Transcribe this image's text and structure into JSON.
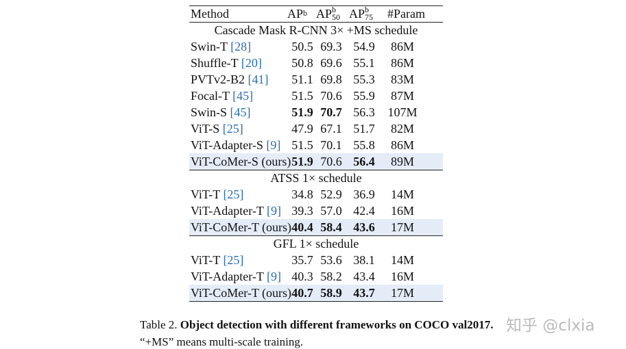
{
  "table": {
    "header": [
      {
        "text": "Method"
      },
      {
        "text": "AP",
        "sup": "b"
      },
      {
        "text": "AP",
        "sup": "b",
        "sub": "50"
      },
      {
        "text": "AP",
        "sup": "b",
        "sub": "75"
      },
      {
        "text": "#Param"
      }
    ],
    "sections": [
      {
        "title": "Cascade Mask R-CNN 3× +MS schedule",
        "rows": [
          {
            "method": "Swin-T",
            "cite": "[28]",
            "cells": [
              "50.5",
              "69.3",
              "54.9",
              "86M"
            ],
            "bold": [],
            "highlight": false
          },
          {
            "method": "Shuffle-T",
            "cite": "[20]",
            "cells": [
              "50.8",
              "69.6",
              "55.1",
              "86M"
            ],
            "bold": [],
            "highlight": false
          },
          {
            "method": "PVTv2-B2",
            "cite": "[41]",
            "cells": [
              "51.1",
              "69.8",
              "55.3",
              "83M"
            ],
            "bold": [],
            "highlight": false
          },
          {
            "method": "Focal-T",
            "cite": "[45]",
            "cells": [
              "51.5",
              "70.6",
              "55.9",
              "87M"
            ],
            "bold": [],
            "highlight": false
          },
          {
            "method": "Swin-S",
            "cite": "[45]",
            "cells": [
              "51.9",
              "70.7",
              "56.3",
              "107M"
            ],
            "bold": [
              0,
              1
            ],
            "highlight": false
          },
          {
            "method": "ViT-S",
            "cite": "[25]",
            "cells": [
              "47.9",
              "67.1",
              "51.7",
              "82M"
            ],
            "bold": [],
            "highlight": false
          },
          {
            "method": "ViT-Adapter-S",
            "cite": "[9]",
            "cells": [
              "51.5",
              "70.1",
              "55.8",
              "86M"
            ],
            "bold": [],
            "highlight": false
          },
          {
            "method": "ViT-CoMer-S (ours)",
            "cite": null,
            "cells": [
              "51.9",
              "70.6",
              "56.4",
              "89M"
            ],
            "bold": [
              0,
              2
            ],
            "highlight": true
          }
        ]
      },
      {
        "title": "ATSS 1× schedule",
        "rows": [
          {
            "method": "ViT-T",
            "cite": "[25]",
            "cells": [
              "34.8",
              "52.9",
              "36.9",
              "14M"
            ],
            "bold": [],
            "highlight": false
          },
          {
            "method": "ViT-Adapter-T",
            "cite": "[9]",
            "cells": [
              "39.3",
              "57.0",
              "42.4",
              "16M"
            ],
            "bold": [],
            "highlight": false
          },
          {
            "method": "ViT-CoMer-T (ours)",
            "cite": null,
            "cells": [
              "40.4",
              "58.4",
              "43.6",
              "17M"
            ],
            "bold": [
              0,
              1,
              2
            ],
            "highlight": true
          }
        ]
      },
      {
        "title": "GFL 1× schedule",
        "rows": [
          {
            "method": "ViT-T",
            "cite": "[25]",
            "cells": [
              "35.7",
              "53.6",
              "38.1",
              "14M"
            ],
            "bold": [],
            "highlight": false
          },
          {
            "method": "ViT-Adapter-T",
            "cite": "[9]",
            "cells": [
              "40.3",
              "58.2",
              "43.4",
              "16M"
            ],
            "bold": [],
            "highlight": false
          },
          {
            "method": "ViT-CoMer-T (ours)",
            "cite": null,
            "cells": [
              "40.7",
              "58.9",
              "43.7",
              "17M"
            ],
            "bold": [
              0,
              1,
              2
            ],
            "highlight": true
          }
        ]
      }
    ]
  },
  "caption": {
    "label": "Table 2.",
    "bold": "Object detection with different frameworks on COCO val2017.",
    "text": "“+MS” means multi-scale training."
  },
  "watermark": "知乎 @clxia"
}
